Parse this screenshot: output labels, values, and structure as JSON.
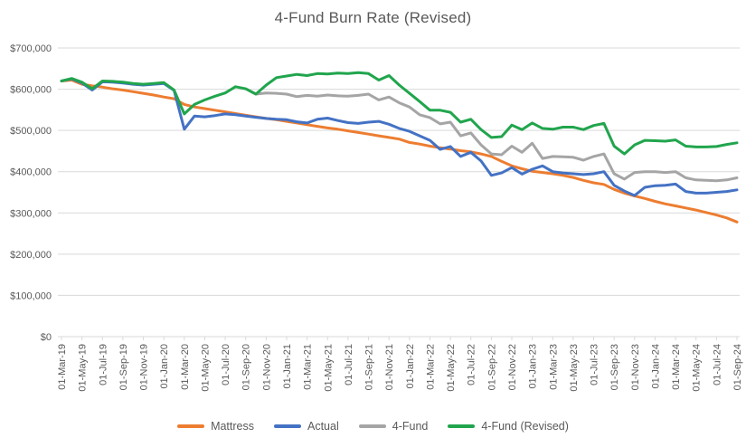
{
  "chart_data": {
    "type": "line",
    "title": "4-Fund Burn Rate (Revised)",
    "xlabel": "",
    "ylabel": "",
    "ylim": [
      0,
      700000
    ],
    "grid": "horizontal",
    "legend_position": "bottom",
    "tick_every": 2,
    "y_ticks": [
      {
        "value": 0,
        "label": "$0"
      },
      {
        "value": 100000,
        "label": "$100,000"
      },
      {
        "value": 200000,
        "label": "$200,000"
      },
      {
        "value": 300000,
        "label": "$300,000"
      },
      {
        "value": 400000,
        "label": "$400,000"
      },
      {
        "value": 500000,
        "label": "$500,000"
      },
      {
        "value": 600000,
        "label": "$600,000"
      },
      {
        "value": 700000,
        "label": "$700,000"
      }
    ],
    "months": [
      "01-Mar-19",
      "01-Apr-19",
      "01-May-19",
      "01-Jun-19",
      "01-Jul-19",
      "01-Aug-19",
      "01-Sep-19",
      "01-Oct-19",
      "01-Nov-19",
      "01-Dec-19",
      "01-Jan-20",
      "01-Feb-20",
      "01-Mar-20",
      "01-Apr-20",
      "01-May-20",
      "01-Jun-20",
      "01-Jul-20",
      "01-Aug-20",
      "01-Sep-20",
      "01-Oct-20",
      "01-Nov-20",
      "01-Dec-20",
      "01-Jan-21",
      "01-Feb-21",
      "01-Mar-21",
      "01-Apr-21",
      "01-May-21",
      "01-Jun-21",
      "01-Jul-21",
      "01-Aug-21",
      "01-Sep-21",
      "01-Oct-21",
      "01-Nov-21",
      "01-Dec-21",
      "01-Jan-22",
      "01-Feb-22",
      "01-Mar-22",
      "01-Apr-22",
      "01-May-22",
      "01-Jun-22",
      "01-Jul-22",
      "01-Aug-22",
      "01-Sep-22",
      "01-Oct-22",
      "01-Nov-22",
      "01-Dec-22",
      "01-Jan-23",
      "01-Feb-23",
      "01-Mar-23",
      "01-Apr-23",
      "01-May-23",
      "01-Jun-23",
      "01-Jul-23",
      "01-Aug-23",
      "01-Sep-23",
      "01-Oct-23",
      "01-Nov-23",
      "01-Dec-23",
      "01-Jan-24",
      "01-Feb-24",
      "01-Mar-24",
      "01-Apr-24",
      "01-May-24",
      "01-Jun-24",
      "01-Jul-24",
      "01-Aug-24",
      "01-Sep-24"
    ],
    "series": [
      {
        "name": "Mattress",
        "color": "#ED7D31",
        "values": [
          620000,
          622000,
          612000,
          608000,
          605000,
          601000,
          598000,
          594000,
          590000,
          586000,
          581000,
          577000,
          563000,
          557000,
          553000,
          549000,
          545000,
          541000,
          537000,
          533000,
          529000,
          526000,
          522000,
          518000,
          514000,
          510000,
          506000,
          503000,
          499000,
          495000,
          491000,
          487000,
          483000,
          479000,
          471000,
          467000,
          462000,
          458000,
          455000,
          451000,
          448000,
          443000,
          437000,
          425000,
          414000,
          407000,
          401000,
          398000,
          395000,
          391000,
          386000,
          379000,
          373000,
          369000,
          357000,
          348000,
          341000,
          335000,
          328000,
          322000,
          317000,
          312000,
          307000,
          301000,
          295000,
          288000,
          278000
        ]
      },
      {
        "name": "Actual",
        "color": "#4472C4",
        "values": [
          620000,
          625000,
          615000,
          598000,
          618000,
          617000,
          615000,
          612000,
          610000,
          612000,
          614000,
          597000,
          503000,
          535000,
          533000,
          536000,
          540000,
          538000,
          535000,
          532000,
          529000,
          527000,
          526000,
          521000,
          518000,
          527000,
          530000,
          524000,
          519000,
          517000,
          520000,
          522000,
          515000,
          505000,
          498000,
          487000,
          476000,
          454000,
          461000,
          437000,
          447000,
          426000,
          391000,
          397000,
          410000,
          394000,
          406000,
          414000,
          400000,
          397000,
          395000,
          393000,
          395000,
          400000,
          367000,
          353000,
          342000,
          362000,
          366000,
          367000,
          370000,
          352000,
          348000,
          348000,
          350000,
          352000,
          356000
        ]
      },
      {
        "name": "4-Fund",
        "color": "#A5A5A5",
        "values": [
          null,
          null,
          null,
          null,
          null,
          null,
          null,
          null,
          null,
          null,
          null,
          null,
          null,
          null,
          null,
          null,
          null,
          null,
          601000,
          588000,
          591000,
          590000,
          588000,
          582000,
          585000,
          583000,
          586000,
          584000,
          583000,
          585000,
          588000,
          574000,
          581000,
          567000,
          557000,
          538000,
          531000,
          516000,
          520000,
          487000,
          494000,
          465000,
          443000,
          441000,
          462000,
          447000,
          469000,
          432000,
          437000,
          436000,
          435000,
          428000,
          437000,
          443000,
          395000,
          382000,
          398000,
          400000,
          400000,
          398000,
          400000,
          385000,
          380000,
          379000,
          378000,
          380000,
          385000
        ]
      },
      {
        "name": "4-Fund (Revised)",
        "color": "#21A54D",
        "values": [
          620000,
          626000,
          617000,
          601000,
          620000,
          619000,
          617000,
          614000,
          612000,
          614000,
          616000,
          598000,
          540000,
          563000,
          574000,
          583000,
          591000,
          606000,
          601000,
          588000,
          610000,
          628000,
          632000,
          636000,
          633000,
          638000,
          637000,
          639000,
          638000,
          640000,
          638000,
          622000,
          633000,
          610000,
          590000,
          570000,
          549000,
          549000,
          544000,
          520000,
          527000,
          502000,
          483000,
          485000,
          513000,
          502000,
          518000,
          505000,
          503000,
          508000,
          508000,
          502000,
          512000,
          517000,
          462000,
          443000,
          465000,
          476000,
          475000,
          474000,
          477000,
          462000,
          460000,
          460000,
          461000,
          466000,
          470000
        ]
      }
    ],
    "style": {
      "gridline_color": "#D9D9D9",
      "axis_label_color": "#595959",
      "title_color": "#595959",
      "background": "#FFFFFF"
    }
  }
}
